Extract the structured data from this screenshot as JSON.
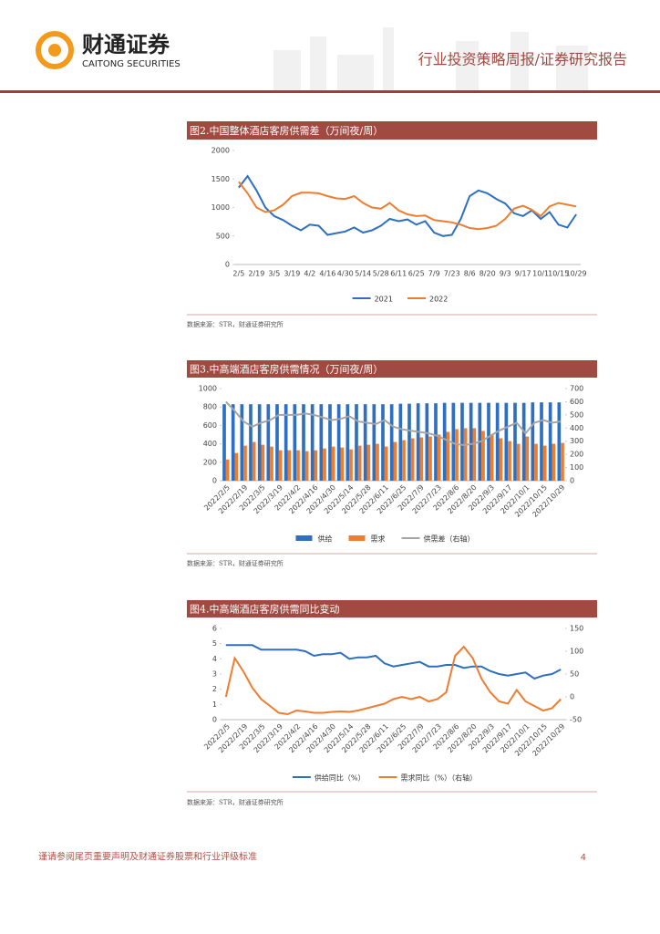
{
  "header": {
    "logo_cn": "财通证券",
    "logo_en": "CAITONG SECURITIES",
    "report_type": "行业投资策略周报/证券研究报告"
  },
  "footer": {
    "disclaimer": "谨请参阅尾页重要声明及财通证券股票和行业评级标准",
    "page": "4"
  },
  "chart_data": [
    {
      "type": "line",
      "title": "图2.中国整体酒店客房供需差（万间夜/周）",
      "source": "数据来源：STR，财通证券研究所",
      "categories": [
        "2/5",
        null,
        "2/19",
        null,
        "3/5",
        null,
        "3/19",
        null,
        "4/2",
        null,
        "4/16",
        null,
        "4/30",
        null,
        "5/14",
        null,
        "5/28",
        null,
        "6/11",
        null,
        "6/25",
        null,
        "7/9",
        null,
        "7/23",
        null,
        "8/6",
        null,
        "8/20",
        null,
        "9/3",
        null,
        "9/17",
        null,
        "10/1",
        null,
        "10/15",
        null,
        "10/29"
      ],
      "ylim": [
        0,
        2000
      ],
      "yticks": [
        0,
        500,
        1000,
        1500,
        2000
      ],
      "grid": false,
      "series": [
        {
          "name": "2021",
          "color": "#2e6fc0",
          "values": [
            1350,
            1550,
            1300,
            1000,
            850,
            780,
            680,
            600,
            700,
            680,
            520,
            550,
            580,
            650,
            560,
            600,
            680,
            800,
            760,
            790,
            700,
            760,
            560,
            500,
            520,
            800,
            1200,
            1300,
            1250,
            1150,
            1070,
            900,
            850,
            950,
            800,
            920,
            700,
            650,
            880
          ]
        },
        {
          "name": "2022",
          "color": "#ed7d31",
          "values": [
            1450,
            1250,
            1000,
            920,
            950,
            1050,
            1200,
            1260,
            1260,
            1250,
            1200,
            1160,
            1150,
            1200,
            1080,
            1000,
            980,
            1080,
            950,
            880,
            850,
            860,
            780,
            760,
            740,
            700,
            640,
            620,
            640,
            680,
            800,
            980,
            1030,
            960,
            850,
            1020,
            1080,
            1050,
            1020
          ]
        }
      ]
    },
    {
      "type": "bar",
      "title": "图3.中高端酒店客房供需情况（万间夜/周）",
      "source": "数据来源：STR，财通证券研究所",
      "categories": [
        "2022/2/5",
        null,
        "2022/2/19",
        null,
        "2022/3/5",
        null,
        "2022/3/19",
        null,
        "2022/4/2",
        null,
        "2022/4/16",
        null,
        "2022/4/30",
        null,
        "2022/5/14",
        null,
        "2022/5/28",
        null,
        "2022/6/11",
        null,
        "2022/6/25",
        null,
        "2022/7/9",
        null,
        "2022/7/23",
        null,
        "2022/8/6",
        null,
        "2022/8/20",
        null,
        "2022/9/3",
        null,
        "2022/9/17",
        null,
        "2022/10/1",
        null,
        "2022/10/15",
        null,
        "2022/10/29"
      ],
      "ylim": [
        0,
        1000
      ],
      "yticks": [
        0,
        200,
        400,
        600,
        800,
        1000
      ],
      "y2lim": [
        0,
        700
      ],
      "y2ticks": [
        0,
        100,
        200,
        300,
        400,
        500,
        600,
        700
      ],
      "grid": false,
      "series": [
        {
          "name": "供给",
          "color": "#2e6fc0",
          "type": "bar",
          "values": [
            830,
            830,
            830,
            830,
            830,
            830,
            830,
            830,
            830,
            830,
            830,
            830,
            830,
            830,
            830,
            830,
            830,
            830,
            830,
            830,
            835,
            835,
            840,
            840,
            840,
            845,
            845,
            845,
            845,
            845,
            845,
            845,
            845,
            845,
            845,
            850,
            850,
            850,
            850
          ]
        },
        {
          "name": "需求",
          "color": "#ed7d31",
          "type": "bar",
          "values": [
            230,
            300,
            380,
            420,
            390,
            370,
            330,
            330,
            330,
            320,
            330,
            350,
            370,
            360,
            340,
            380,
            390,
            400,
            370,
            420,
            440,
            460,
            470,
            480,
            500,
            530,
            560,
            570,
            570,
            540,
            500,
            460,
            430,
            400,
            480,
            400,
            380,
            400,
            410
          ]
        },
        {
          "name": "供需差（右轴）",
          "color": "#a5a5a5",
          "type": "line",
          "axis": "y2",
          "values": [
            600,
            530,
            450,
            410,
            440,
            460,
            500,
            500,
            500,
            510,
            500,
            480,
            460,
            470,
            490,
            450,
            440,
            430,
            460,
            410,
            390,
            380,
            370,
            360,
            340,
            310,
            280,
            270,
            280,
            300,
            340,
            380,
            410,
            440,
            360,
            440,
            460,
            440,
            450
          ]
        }
      ]
    },
    {
      "type": "line",
      "title": "图4.中高端酒店客房供需同比变动",
      "source": "数据来源：STR，财通证券研究所",
      "categories": [
        "2022/2/5",
        null,
        "2022/2/19",
        null,
        "2022/3/5",
        null,
        "2022/3/19",
        null,
        "2022/4/2",
        null,
        "2022/4/16",
        null,
        "2022/4/30",
        null,
        "2022/5/14",
        null,
        "2022/5/28",
        null,
        "2022/6/11",
        null,
        "2022/6/25",
        null,
        "2022/7/9",
        null,
        "2022/7/23",
        null,
        "2022/8/6",
        null,
        "2022/8/20",
        null,
        "2022/9/3",
        null,
        "2022/9/17",
        null,
        "2022/10/1",
        null,
        "2022/10/15",
        null,
        "2022/10/29"
      ],
      "ylim": [
        0,
        6
      ],
      "yticks": [
        0,
        1,
        2,
        3,
        4,
        5,
        6
      ],
      "y2lim": [
        -50,
        150
      ],
      "y2ticks": [
        -50,
        0,
        50,
        100,
        150
      ],
      "grid": false,
      "series": [
        {
          "name": "供给同比（%）",
          "color": "#2e6fc0",
          "values": [
            4.9,
            4.9,
            4.9,
            4.9,
            4.6,
            4.6,
            4.6,
            4.6,
            4.6,
            4.5,
            4.2,
            4.3,
            4.3,
            4.4,
            4.0,
            4.1,
            4.1,
            4.2,
            3.7,
            3.5,
            3.6,
            3.7,
            3.8,
            3.5,
            3.5,
            3.6,
            3.6,
            3.4,
            3.5,
            3.5,
            3.2,
            3.0,
            2.9,
            3.0,
            3.1,
            2.7,
            2.9,
            3.0,
            3.3
          ]
        },
        {
          "name": "需求同比（%）（右轴）",
          "color": "#ed7d31",
          "axis": "y2",
          "values": [
            0,
            85,
            55,
            20,
            -5,
            -20,
            -35,
            -38,
            -30,
            -32,
            -35,
            -35,
            -33,
            -32,
            -33,
            -30,
            -25,
            -20,
            -15,
            -5,
            0,
            -5,
            0,
            -10,
            -5,
            10,
            90,
            110,
            85,
            40,
            10,
            -10,
            -15,
            15,
            -10,
            -20,
            -30,
            -25,
            -5
          ]
        }
      ]
    }
  ]
}
